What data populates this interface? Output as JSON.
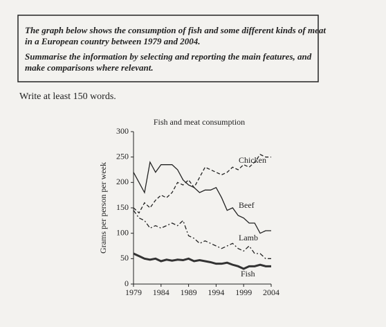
{
  "prompt": {
    "lines": [
      "The graph below shows the consumption of fish and some different kinds of meat",
      "in a European country between 1979 and 2004.",
      "Summarise the information by selecting and reporting the main features, and",
      "make comparisons where relevant."
    ]
  },
  "instruction": "Write at least 150 words.",
  "chart_data": {
    "type": "line",
    "title": "Fish and meat consumption",
    "y_label": "Grams per person per week",
    "x": [
      1979,
      1980,
      1981,
      1982,
      1983,
      1984,
      1985,
      1986,
      1987,
      1988,
      1989,
      1990,
      1991,
      1992,
      1993,
      1994,
      1995,
      1996,
      1997,
      1998,
      1999,
      2000,
      2001,
      2002,
      2003,
      2004
    ],
    "xlim": [
      1979,
      2004
    ],
    "xticks": [
      1979,
      1984,
      1989,
      1994,
      1999,
      2004
    ],
    "ylim": [
      0,
      300
    ],
    "yticks": [
      0,
      50,
      100,
      150,
      200,
      250,
      300
    ],
    "series": [
      {
        "name": "Chicken",
        "color": "#222222",
        "dash": "dashed",
        "width": 1.3,
        "values": [
          150,
          140,
          160,
          150,
          165,
          175,
          170,
          180,
          200,
          195,
          205,
          190,
          210,
          230,
          225,
          220,
          215,
          220,
          230,
          225,
          235,
          230,
          240,
          255,
          250,
          250
        ]
      },
      {
        "name": "Beef",
        "color": "#222222",
        "dash": "solid",
        "width": 1.3,
        "values": [
          220,
          200,
          180,
          240,
          220,
          235,
          235,
          235,
          225,
          205,
          195,
          190,
          180,
          185,
          185,
          190,
          170,
          145,
          150,
          135,
          130,
          120,
          120,
          100,
          105,
          105
        ]
      },
      {
        "name": "Lamb",
        "color": "#222222",
        "dash": "dash-dot",
        "width": 1.3,
        "values": [
          145,
          130,
          125,
          110,
          115,
          110,
          115,
          120,
          115,
          125,
          95,
          90,
          80,
          85,
          80,
          75,
          70,
          75,
          80,
          70,
          65,
          75,
          60,
          60,
          50,
          50
        ]
      },
      {
        "name": "Fish",
        "color": "#333333",
        "dash": "solid",
        "width": 3,
        "values": [
          60,
          55,
          50,
          48,
          50,
          45,
          48,
          46,
          48,
          47,
          50,
          45,
          47,
          45,
          43,
          40,
          40,
          42,
          38,
          35,
          30,
          35,
          35,
          38,
          35,
          35
        ]
      }
    ]
  }
}
